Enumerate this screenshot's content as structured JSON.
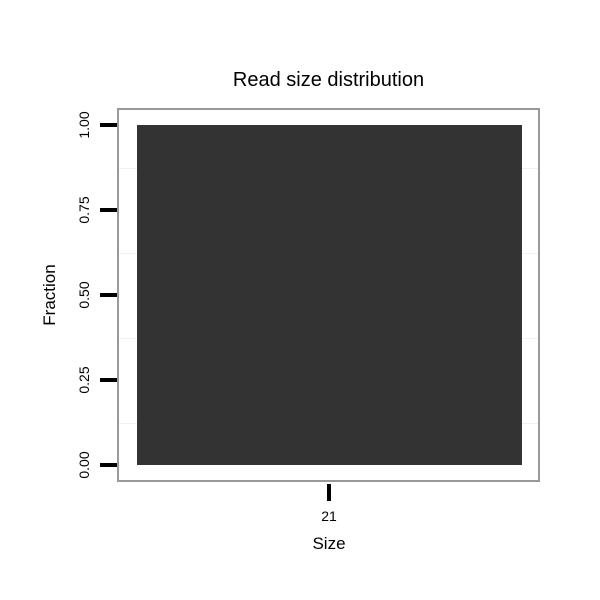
{
  "chart_data": {
    "type": "bar",
    "title": "Read size distribution",
    "xlabel": "Size",
    "ylabel": "Fraction",
    "categories": [
      "21"
    ],
    "values": [
      1.0
    ],
    "ylim": [
      0,
      1
    ],
    "yticks": [
      {
        "value": 0.0,
        "label": "0.00"
      },
      {
        "value": 0.25,
        "label": "0.25"
      },
      {
        "value": 0.5,
        "label": "0.50"
      },
      {
        "value": 0.75,
        "label": "0.75"
      },
      {
        "value": 1.0,
        "label": "1.00"
      }
    ],
    "minor_gridlines": [
      0.125,
      0.375,
      0.625,
      0.875
    ],
    "grid": "minor-faint",
    "legend": "none",
    "axis_text_rotation": "y-labels rotated 90deg",
    "colors": {
      "bar_fill": "#333333",
      "panel_border": "#999999",
      "tick": "#000000",
      "text": "#000000",
      "gridline": "#f0f0f0",
      "background": "#ffffff"
    }
  }
}
